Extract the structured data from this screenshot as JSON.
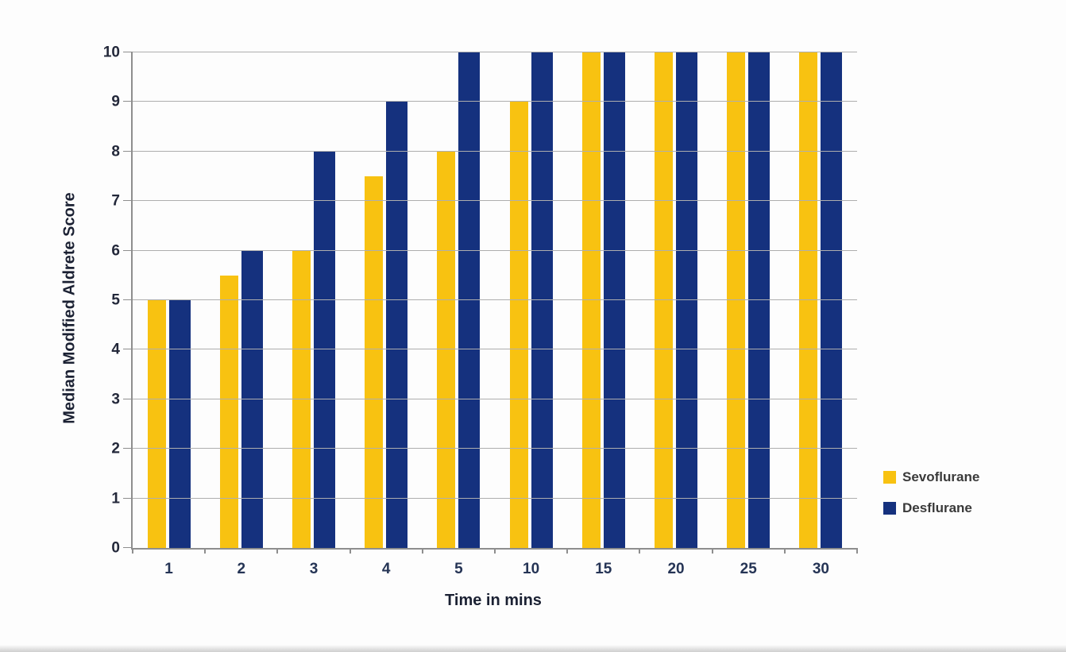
{
  "chart_data": {
    "type": "bar",
    "title": "",
    "xlabel": "Time in mins",
    "ylabel": "Median Modified Aldrete Score",
    "categories": [
      "1",
      "2",
      "3",
      "4",
      "5",
      "10",
      "15",
      "20",
      "25",
      "30"
    ],
    "series": [
      {
        "name": "Sevoflurane",
        "color": "#F8C211",
        "values": [
          5,
          5.5,
          6,
          7.5,
          8,
          9,
          10,
          10,
          10,
          10
        ]
      },
      {
        "name": "Desflurane",
        "color": "#15317E",
        "values": [
          5,
          6,
          8,
          9,
          10,
          10,
          10,
          10,
          10,
          10
        ]
      }
    ],
    "ylim": [
      0,
      10
    ],
    "ytick_step": 1,
    "y_tick_labels": [
      "0",
      "1",
      "2",
      "3",
      "4",
      "5",
      "6",
      "7",
      "8",
      "9",
      "10"
    ],
    "grid": true,
    "gridline_color": "#aeaeae",
    "axis_color": "#8e8e8e",
    "legend_position": "right"
  }
}
